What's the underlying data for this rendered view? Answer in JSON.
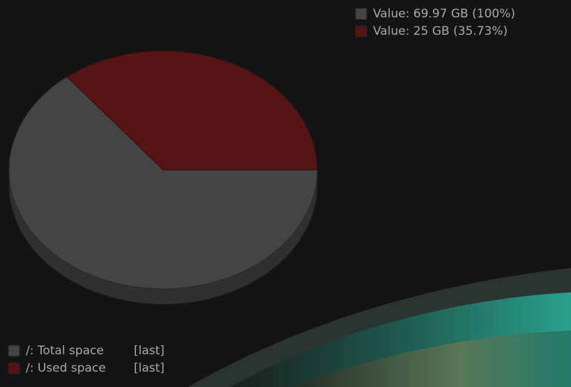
{
  "chart_data": {
    "type": "pie",
    "categories": [
      "/: Total space",
      "/: Used space"
    ],
    "functions": [
      "[last]",
      "[last]"
    ],
    "values": [
      69.97,
      25
    ],
    "value_labels": [
      "Value: 69.97 GB (100%)",
      "Value: 25 GB (35.73%)"
    ],
    "colors": [
      "#444444",
      "#561414"
    ]
  }
}
